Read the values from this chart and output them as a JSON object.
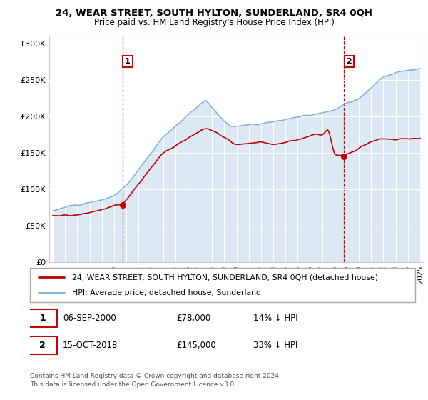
{
  "title": "24, WEAR STREET, SOUTH HYLTON, SUNDERLAND, SR4 0QH",
  "subtitle": "Price paid vs. HM Land Registry's House Price Index (HPI)",
  "legend_line1": "24, WEAR STREET, SOUTH HYLTON, SUNDERLAND, SR4 0QH (detached house)",
  "legend_line2": "HPI: Average price, detached house, Sunderland",
  "annotation1_date": "06-SEP-2000",
  "annotation1_price": "£78,000",
  "annotation1_pct": "14% ↓ HPI",
  "annotation2_date": "15-OCT-2018",
  "annotation2_price": "£145,000",
  "annotation2_pct": "33% ↓ HPI",
  "footer": "Contains HM Land Registry data © Crown copyright and database right 2024.\nThis data is licensed under the Open Government Licence v3.0.",
  "hpi_color": "#7aadd4",
  "hpi_fill_color": "#c5d9ed",
  "price_color": "#c00000",
  "vline_color": "#cc0000",
  "box_edge_color": "#cc0000",
  "plot_bg_color": "#ffffff",
  "ylim": [
    0,
    310000
  ],
  "yticks": [
    0,
    50000,
    100000,
    150000,
    200000,
    250000,
    300000
  ],
  "xlim_start": 1994.7,
  "xlim_end": 2025.3,
  "sale1_year": 2000.71,
  "sale1_price": 78000,
  "sale2_year": 2018.79,
  "sale2_price": 145000
}
